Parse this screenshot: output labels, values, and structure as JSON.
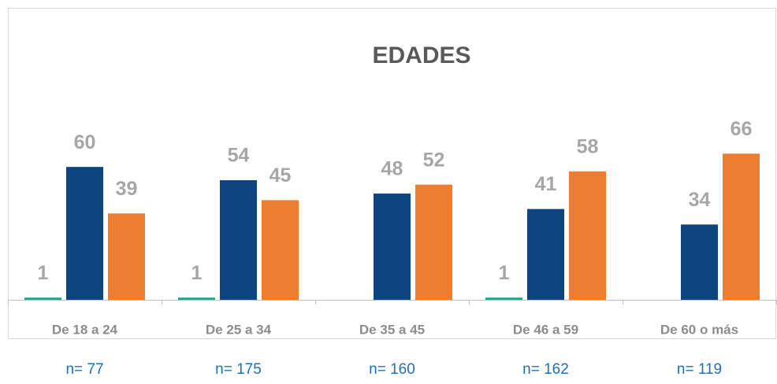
{
  "chart_data": {
    "type": "bar",
    "title": "EDADES",
    "categories": [
      "De 18 a 24",
      "De 25 a 34",
      "De 35 a 45",
      "De 46 a 59",
      "De 60 o más"
    ],
    "series": [
      {
        "color": "#2a9d8f",
        "values": [
          1,
          1,
          null,
          1,
          null
        ]
      },
      {
        "color": "#0d4580",
        "values": [
          60,
          54,
          48,
          41,
          34
        ]
      },
      {
        "color": "#ed7d31",
        "values": [
          39,
          45,
          52,
          58,
          66
        ]
      }
    ],
    "ylim": [
      0,
      70
    ],
    "sample_sizes": [
      "n= 77",
      "n= 175",
      "n= 160",
      "n= 162",
      "n= 119"
    ]
  }
}
